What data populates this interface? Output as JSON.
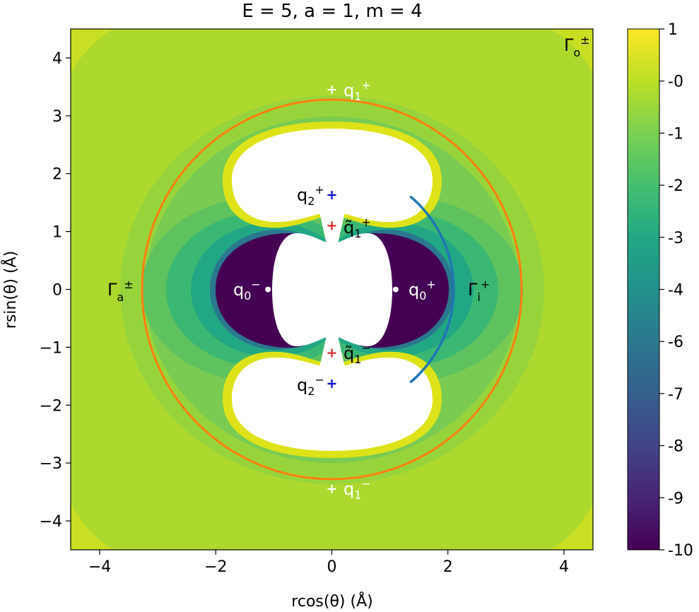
{
  "chart_data": {
    "type": "contour",
    "title": "E = 5, a = 1, m = 4",
    "xlabel": "rcos(θ) (Å)",
    "ylabel": "rsin(θ) (Å)",
    "xlim": [
      -4.5,
      4.5
    ],
    "ylim": [
      -4.5,
      4.5
    ],
    "x_ticks": [
      -4,
      -2,
      0,
      2,
      4
    ],
    "y_ticks": [
      -4,
      -3,
      -2,
      -1,
      0,
      1,
      2,
      3,
      4
    ],
    "grid": false,
    "colorbar": {
      "colormap": "viridis",
      "range": [
        -10,
        1
      ],
      "tick_labels": [
        "1",
        "-0",
        "-1",
        "-2",
        "-3",
        "-4",
        "-6",
        "-7",
        "-8",
        "-9",
        "-10"
      ],
      "levels": 15
    },
    "curves": [
      {
        "name": "Γa±",
        "shape": "circle",
        "center": [
          0,
          0
        ],
        "radius": 3.27,
        "color": "#ff7f0e"
      },
      {
        "name": "Γi+",
        "shape": "arc",
        "center": [
          0,
          0
        ],
        "radius": 2.1,
        "theta_deg": [
          -50,
          50
        ],
        "color": "#1f77b4"
      }
    ],
    "points": [
      {
        "label": "q1+",
        "x": 0,
        "y": 3.45,
        "marker": "+",
        "color": "#ffffff"
      },
      {
        "label": "q1−",
        "x": 0,
        "y": -3.45,
        "marker": "+",
        "color": "#ffffff"
      },
      {
        "label": "q2+",
        "x": 0,
        "y": 1.63,
        "marker": "+",
        "color": "#0000cc"
      },
      {
        "label": "q2−",
        "x": 0,
        "y": -1.63,
        "marker": "+",
        "color": "#0000cc"
      },
      {
        "label": "q̃1+",
        "x": 0,
        "y": 1.1,
        "marker": "+",
        "color": "#d62728"
      },
      {
        "label": "q̃1−",
        "x": 0,
        "y": -1.1,
        "marker": "+",
        "color": "#d62728"
      },
      {
        "label": "q0−",
        "x": -1.1,
        "y": 0,
        "marker": "•",
        "color": "#ffffff"
      },
      {
        "label": "q0+",
        "x": 1.1,
        "y": 0,
        "marker": "•",
        "color": "#ffffff"
      }
    ],
    "annotations": [
      "Γo±",
      "Γa±",
      "Γi+"
    ]
  },
  "colors": {
    "background": "#add92e",
    "ring1": "#97d43c",
    "ring2": "#79cb52",
    "ring3": "#5ec25f",
    "ring4": "#3ab873",
    "teal": "#21a784",
    "deep": "#440154",
    "edgeYellow": "#dde318",
    "corner": "#c8df23",
    "curve_orange": "#ff7f0e",
    "curve_blue": "#1f77b4"
  }
}
